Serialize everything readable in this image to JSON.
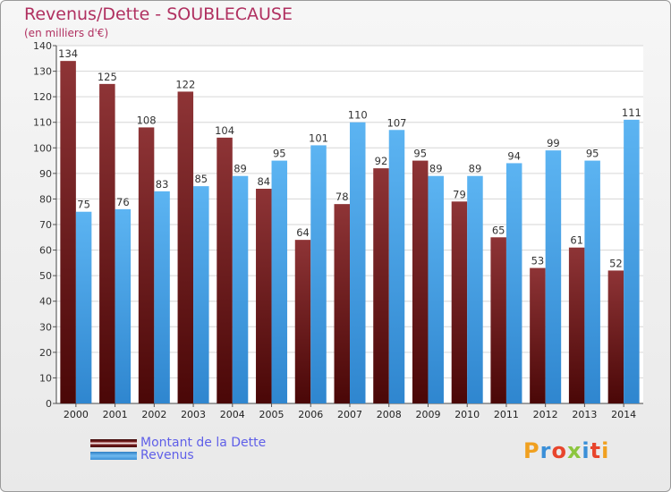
{
  "title": "Revenus/Dette - SOUBLECAUSE",
  "subtitle": "(en milliers d'€)",
  "logo": "Proxiti",
  "colors": {
    "dette": "#7a1f22",
    "revenus": "#4aa3e8",
    "title": "#b03060",
    "legend_text": "#5f5fe8"
  },
  "chart_data": {
    "type": "bar",
    "title": "Revenus/Dette - SOUBLECAUSE",
    "ylabel": "(en milliers d'€)",
    "xlabel": "",
    "ylim": [
      0,
      140
    ],
    "yticks": [
      0,
      10,
      20,
      30,
      40,
      50,
      60,
      70,
      80,
      90,
      100,
      110,
      120,
      130,
      140
    ],
    "grid": true,
    "legend_position": "bottom-left",
    "categories": [
      "2000",
      "2001",
      "2002",
      "2003",
      "2004",
      "2005",
      "2006",
      "2007",
      "2008",
      "2009",
      "2010",
      "2011",
      "2012",
      "2013",
      "2014"
    ],
    "series": [
      {
        "name": "Montant de la Dette",
        "values": [
          134,
          125,
          108,
          122,
          104,
          84,
          64,
          78,
          92,
          95,
          79,
          65,
          53,
          61,
          52
        ]
      },
      {
        "name": "Revenus",
        "values": [
          75,
          76,
          83,
          85,
          89,
          95,
          101,
          110,
          107,
          89,
          89,
          94,
          99,
          95,
          111
        ]
      }
    ]
  }
}
